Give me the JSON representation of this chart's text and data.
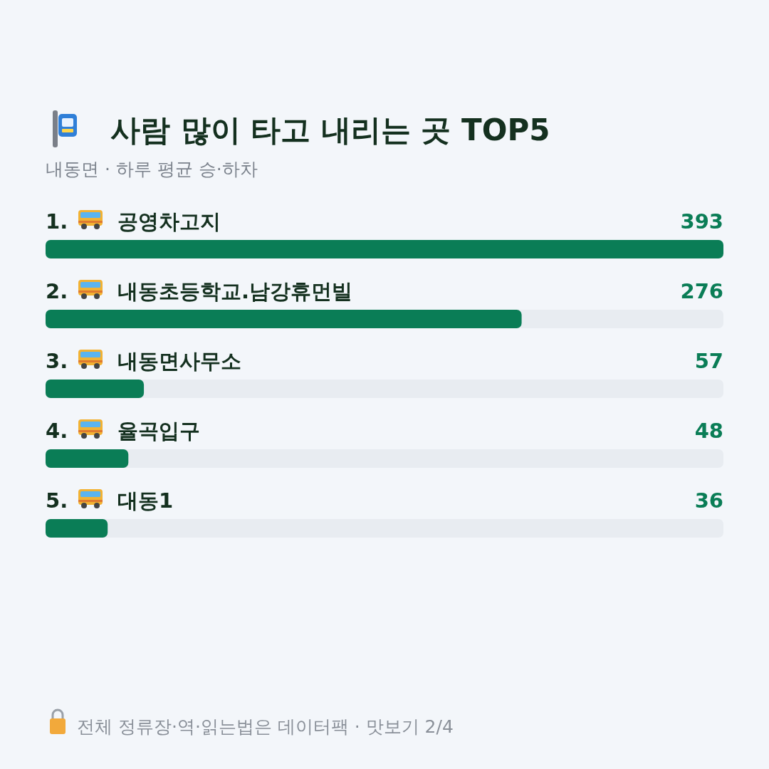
{
  "chart_data": {
    "type": "bar",
    "orientation": "horizontal",
    "title": "사람 많이 타고 내리는 곳 TOP5",
    "subtitle": "내동면 · 하루 평균 승·하차",
    "categories": [
      "1. 공영차고지",
      "2. 내동초등학교.남강휴먼빌",
      "3. 내동면사무소",
      "4. 율곡입구",
      "5. 대동1"
    ],
    "values": [
      393,
      276,
      57,
      48,
      36
    ],
    "color": "#0a7d56",
    "data_labels": true,
    "annotations": [
      "전체 정류장·역·읽는법은 데이터팩 · 맛보기 2/4"
    ]
  }
}
